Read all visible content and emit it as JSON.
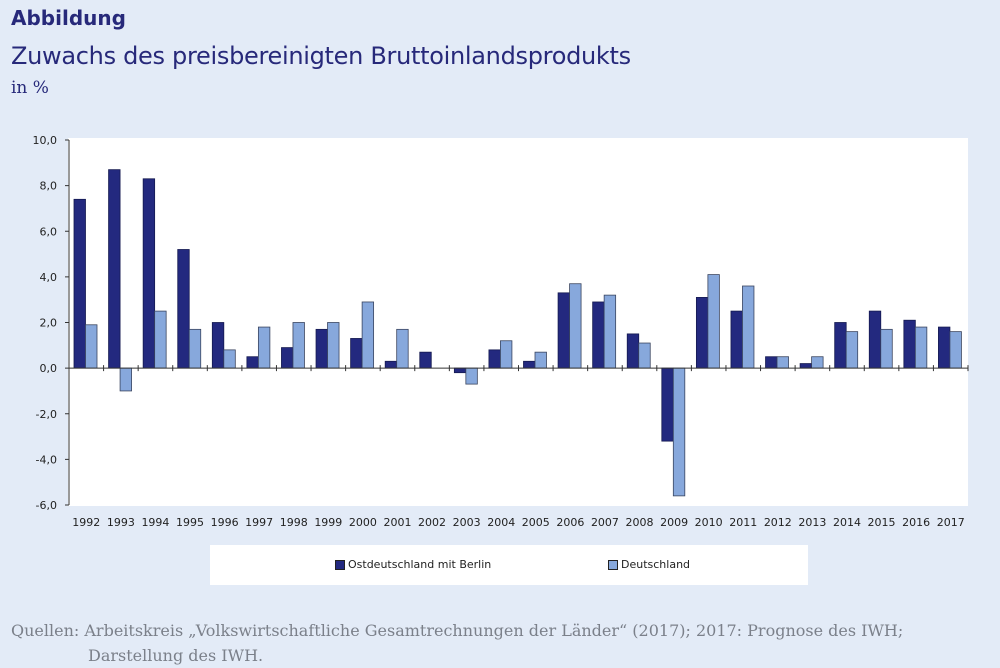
{
  "header": {
    "label": "Abbildung",
    "title": "Zuwachs des preisbereinigten Bruttoinlandsprodukts",
    "unit": "in %"
  },
  "chart_data": {
    "type": "bar",
    "title": "Zuwachs des preisbereinigten Bruttoinlandsprodukts",
    "ylabel": "in %",
    "xlabel": "",
    "ylim": [
      -6,
      10
    ],
    "yticks": [
      "10,0",
      "8,0",
      "6,0",
      "4,0",
      "2,0",
      "0,0",
      "-2,0",
      "-4,0",
      "-6,0"
    ],
    "grid": false,
    "legend": "bottom",
    "categories": [
      "1992",
      "1993",
      "1994",
      "1995",
      "1996",
      "1997",
      "1998",
      "1999",
      "2000",
      "2001",
      "2002",
      "2003",
      "2004",
      "2005",
      "2006",
      "2007",
      "2008",
      "2009",
      "2010",
      "2011",
      "2012",
      "2013",
      "2014",
      "2015",
      "2016",
      "2017"
    ],
    "series": [
      {
        "name": "Ostdeutschland mit Berlin",
        "color": "#23297f",
        "values": [
          7.4,
          8.7,
          8.3,
          5.2,
          2.0,
          0.5,
          0.9,
          1.7,
          1.3,
          0.3,
          0.7,
          -0.2,
          0.8,
          0.3,
          3.3,
          2.9,
          1.5,
          -3.2,
          3.1,
          2.5,
          0.5,
          0.2,
          2.0,
          2.5,
          2.1,
          1.8
        ]
      },
      {
        "name": "Deutschland",
        "color": "#87a8dc",
        "values": [
          1.9,
          -1.0,
          2.5,
          1.7,
          0.8,
          1.8,
          2.0,
          2.0,
          2.9,
          1.7,
          0.0,
          -0.7,
          1.2,
          0.7,
          3.7,
          3.2,
          1.1,
          -5.6,
          4.1,
          3.6,
          0.5,
          0.5,
          1.6,
          1.7,
          1.8,
          1.6
        ]
      }
    ]
  },
  "source": {
    "line1": "Quellen: Arbeitskreis „Volkswirtschaftliche Gesamtrechnungen der Länder“ (2017); 2017: Prognose des IWH;",
    "line2": "Darstellung des IWH."
  }
}
